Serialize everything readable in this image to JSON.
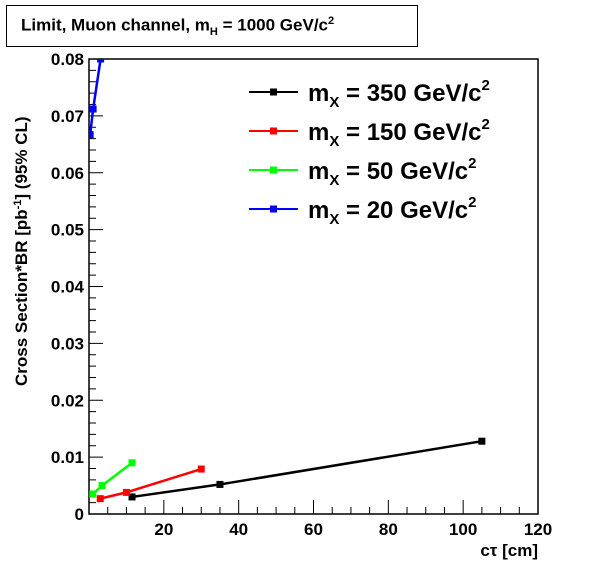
{
  "title": {
    "prefix": "Limit, Muon channel, m",
    "sub": "H",
    "mid": " = 1000 GeV/c",
    "sup": "2"
  },
  "chart_data": {
    "type": "line",
    "xlabel": "cτ [cm]",
    "ylabel": "Cross Section*BR [pb-1] (95% CL)",
    "xlim": [
      0,
      120
    ],
    "ylim": [
      0,
      0.08
    ],
    "xticks": [
      20,
      40,
      60,
      80,
      100,
      120
    ],
    "yticks": [
      0,
      0.01,
      0.02,
      0.03,
      0.04,
      0.05,
      0.06,
      0.07,
      0.08
    ],
    "legend_position": "top-right",
    "series": [
      {
        "name": "m_X = 350 GeV/c^2",
        "label_main": "m",
        "label_sub": "X",
        "label_rest": " = 350 GeV/c",
        "label_sup": "2",
        "color": "#000000",
        "x": [
          11.5,
          35,
          105
        ],
        "y": [
          0.003,
          0.0052,
          0.0128
        ]
      },
      {
        "name": "m_X = 150 GeV/c^2",
        "label_main": "m",
        "label_sub": "X",
        "label_rest": " = 150 GeV/c",
        "label_sup": "2",
        "color": "#ff0000",
        "x": [
          3,
          10,
          30
        ],
        "y": [
          0.0027,
          0.0038,
          0.0079
        ]
      },
      {
        "name": "m_X = 50 GeV/c^2",
        "label_main": "m",
        "label_sub": "X",
        "label_rest": " = 50 GeV/c",
        "label_sup": "2",
        "color": "#00ff00",
        "x": [
          1,
          3.5,
          11.5
        ],
        "y": [
          0.0035,
          0.005,
          0.009
        ]
      },
      {
        "name": "m_X = 20 GeV/c^2",
        "label_main": "m",
        "label_sub": "X",
        "label_rest": " = 20 GeV/c",
        "label_sup": "2",
        "color": "#0000ff",
        "x": [
          0.3,
          1.1,
          3.1
        ],
        "y": [
          0.0667,
          0.0712,
          0.08
        ]
      }
    ]
  }
}
